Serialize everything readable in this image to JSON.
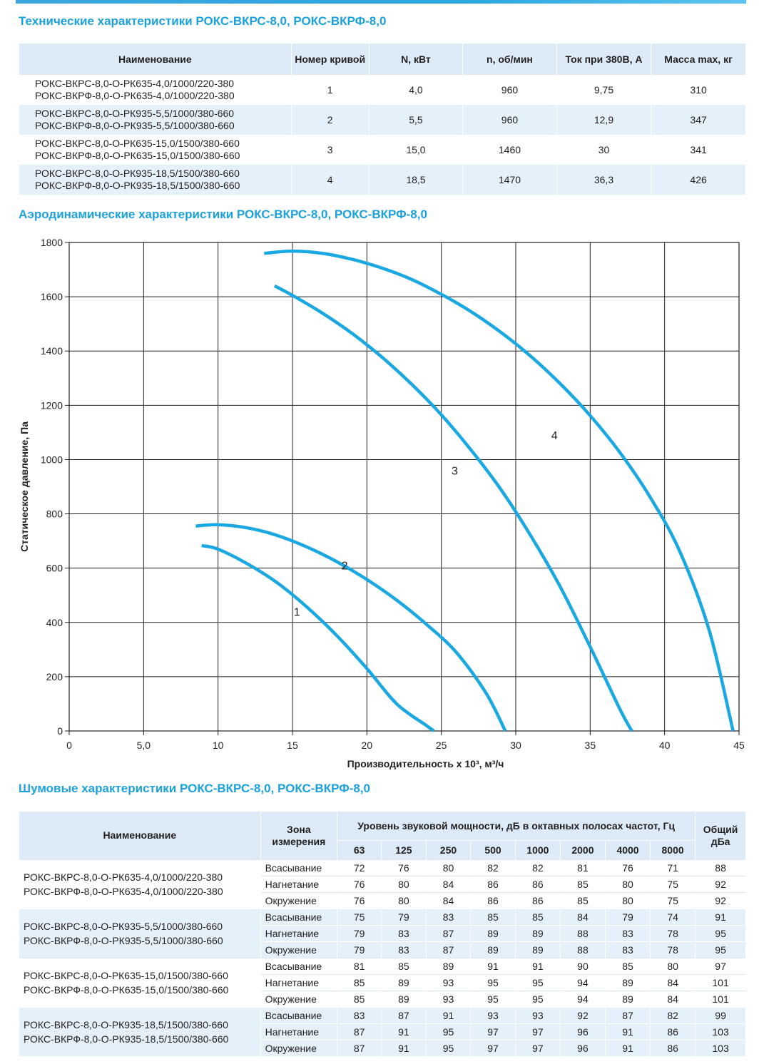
{
  "title_tech": "Технические характеристики РОКС-ВКРС-8,0, РОКС-ВКРФ-8,0",
  "title_aero": "Аэродинамические характеристики РОКС-ВКРС-8,0, РОКС-ВКРФ-8,0",
  "title_noise": "Шумовые характеристики РОКС-ВКРС-8,0, РОКС-ВКРФ-8,0",
  "tech": {
    "headers": [
      "Наименование",
      "Номер кривой",
      "N, кВт",
      "n, об/мин",
      "Ток при 380В, А",
      "Масса max, кг"
    ],
    "rows": [
      {
        "name1": "РОКС-ВКРС-8,0-О-РК635-4,0/1000/220-380",
        "name2": "РОКС-ВКРФ-8,0-О-РК635-4,0/1000/220-380",
        "curve": "1",
        "power": "4,0",
        "rpm": "960",
        "current": "9,75",
        "mass": "310"
      },
      {
        "name1": "РОКС-ВКРС-8,0-О-РК935-5,5/1000/380-660",
        "name2": "РОКС-ВКРФ-8,0-О-РК935-5,5/1000/380-660",
        "curve": "2",
        "power": "5,5",
        "rpm": "960",
        "current": "12,9",
        "mass": "347"
      },
      {
        "name1": "РОКС-ВКРС-8,0-О-РК635-15,0/1500/380-660",
        "name2": "РОКС-ВКРФ-8,0-О-РК635-15,0/1500/380-660",
        "curve": "3",
        "power": "15,0",
        "rpm": "1460",
        "current": "30",
        "mass": "341"
      },
      {
        "name1": "РОКС-ВКРС-8,0-О-РК935-18,5/1500/380-660",
        "name2": "РОКС-ВКРФ-8,0-О-РК935-18,5/1500/380-660",
        "curve": "4",
        "power": "18,5",
        "rpm": "1470",
        "current": "36,3",
        "mass": "426"
      }
    ]
  },
  "chart_data": {
    "type": "line",
    "title": "Аэродинамические характеристики РОКС-ВКРС-8,0, РОКС-ВКРФ-8,0",
    "xlabel": "Производительность x 10³, м³/ч",
    "ylabel": "Статическое давление, Па",
    "xlim": [
      0,
      45
    ],
    "ylim": [
      0,
      1800
    ],
    "xticks": [
      0,
      5,
      10,
      15,
      20,
      25,
      30,
      35,
      40,
      45
    ],
    "xtick_labels": [
      "0",
      "5,0",
      "10",
      "15",
      "20",
      "25",
      "30",
      "35",
      "40",
      "45"
    ],
    "yticks": [
      0,
      200,
      400,
      600,
      800,
      1000,
      1200,
      1400,
      1600,
      1800
    ],
    "grid": true,
    "line_color": "#1aa8e3",
    "series": [
      {
        "name": "1",
        "label_at": [
          15.3,
          425
        ],
        "x": [
          8.9,
          10,
          12,
          14,
          16,
          18,
          20,
          22,
          24,
          24.5
        ],
        "y": [
          683,
          670,
          615,
          545,
          455,
          350,
          230,
          100,
          20,
          0
        ]
      },
      {
        "name": "2",
        "label_at": [
          18.5,
          595
        ],
        "x": [
          8.5,
          10,
          12,
          14,
          16,
          18,
          20,
          22,
          24,
          26,
          28,
          29.3
        ],
        "y": [
          755,
          760,
          748,
          720,
          677,
          623,
          558,
          482,
          393,
          290,
          140,
          0
        ]
      },
      {
        "name": "3",
        "label_at": [
          25.9,
          945
        ],
        "x": [
          13.8,
          15,
          17,
          19,
          21,
          23,
          25,
          27,
          29,
          31,
          33,
          35,
          37,
          37.8
        ],
        "y": [
          1640,
          1605,
          1540,
          1465,
          1378,
          1278,
          1165,
          1035,
          890,
          720,
          530,
          310,
          80,
          0
        ]
      },
      {
        "name": "4",
        "label_at": [
          32.6,
          1075
        ],
        "x": [
          13.1,
          15,
          17,
          19,
          21,
          23,
          25,
          27,
          29,
          31,
          33,
          35,
          37,
          39,
          41,
          43,
          44.6
        ],
        "y": [
          1760,
          1768,
          1760,
          1738,
          1706,
          1664,
          1609,
          1545,
          1469,
          1381,
          1279,
          1162,
          1026,
          864,
          664,
          370,
          0
        ]
      }
    ]
  },
  "noise": {
    "header_name": "Наименование",
    "header_zone": "Зона измерения",
    "header_level": "Уровень звуковой мощности, дБ в октавных полосах частот, Гц",
    "header_total": "Общий дБа",
    "freqs": [
      "63",
      "125",
      "250",
      "500",
      "1000",
      "2000",
      "4000",
      "8000"
    ],
    "groups": [
      {
        "name1": "РОКС-ВКРС-8,0-О-РК635-4,0/1000/220-380",
        "name2": "РОКС-ВКРФ-8,0-О-РК635-4,0/1000/220-380",
        "rows": [
          {
            "zone": "Всасывание",
            "values": [
              "72",
              "76",
              "80",
              "82",
              "82",
              "81",
              "76",
              "71"
            ],
            "total": "88"
          },
          {
            "zone": "Нагнетание",
            "values": [
              "76",
              "80",
              "84",
              "86",
              "86",
              "85",
              "80",
              "75"
            ],
            "total": "92"
          },
          {
            "zone": "Окружение",
            "values": [
              "76",
              "80",
              "84",
              "86",
              "86",
              "85",
              "80",
              "75"
            ],
            "total": "92"
          }
        ]
      },
      {
        "name1": "РОКС-ВКРС-8,0-О-РК935-5,5/1000/380-660",
        "name2": "РОКС-ВКРФ-8,0-О-РК935-5,5/1000/380-660",
        "rows": [
          {
            "zone": "Всасывание",
            "values": [
              "75",
              "79",
              "83",
              "85",
              "85",
              "84",
              "79",
              "74"
            ],
            "total": "91"
          },
          {
            "zone": "Нагнетание",
            "values": [
              "79",
              "83",
              "87",
              "89",
              "89",
              "88",
              "83",
              "78"
            ],
            "total": "95"
          },
          {
            "zone": "Окружение",
            "values": [
              "79",
              "83",
              "87",
              "89",
              "89",
              "88",
              "83",
              "78"
            ],
            "total": "95"
          }
        ]
      },
      {
        "name1": "РОКС-ВКРС-8,0-О-РК635-15,0/1500/380-660",
        "name2": "РОКС-ВКРФ-8,0-О-РК635-15,0/1500/380-660",
        "rows": [
          {
            "zone": "Всасывание",
            "values": [
              "81",
              "85",
              "89",
              "91",
              "91",
              "90",
              "85",
              "80"
            ],
            "total": "97"
          },
          {
            "zone": "Нагнетание",
            "values": [
              "85",
              "89",
              "93",
              "95",
              "95",
              "94",
              "89",
              "84"
            ],
            "total": "101"
          },
          {
            "zone": "Окружение",
            "values": [
              "85",
              "89",
              "93",
              "95",
              "95",
              "94",
              "89",
              "84"
            ],
            "total": "101"
          }
        ]
      },
      {
        "name1": "РОКС-ВКРС-8,0-О-РК935-18,5/1500/380-660",
        "name2": "РОКС-ВКРФ-8,0-О-РК935-18,5/1500/380-660",
        "rows": [
          {
            "zone": "Всасывание",
            "values": [
              "83",
              "87",
              "91",
              "93",
              "93",
              "92",
              "87",
              "82"
            ],
            "total": "99"
          },
          {
            "zone": "Нагнетание",
            "values": [
              "87",
              "91",
              "95",
              "97",
              "97",
              "96",
              "91",
              "86"
            ],
            "total": "103"
          },
          {
            "zone": "Окружение",
            "values": [
              "87",
              "91",
              "95",
              "97",
              "97",
              "96",
              "91",
              "86"
            ],
            "total": "103"
          }
        ]
      }
    ]
  }
}
